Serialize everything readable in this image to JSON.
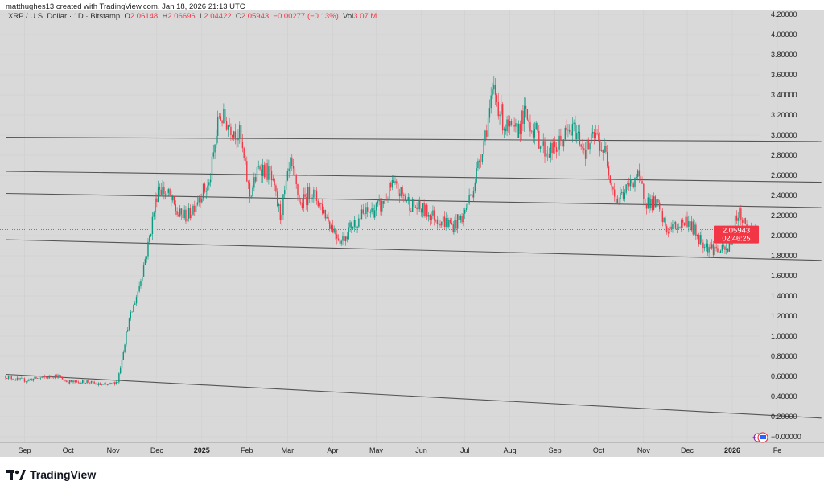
{
  "credit": "matthughes13 created with TradingView.com, Jan 18, 2026 21:13 UTC",
  "legend": {
    "symbol": "XRP / U.S. Dollar · 1D · Bitstamp",
    "o_label": "O",
    "o": "2.06148",
    "h_label": "H",
    "h": "2.06696",
    "l_label": "L",
    "l": "2.04422",
    "c_label": "C",
    "c": "2.05943",
    "change": "−0.00277 (−0.13%)",
    "vol_label": "Vol",
    "vol": "3.07 M"
  },
  "price_badge": {
    "price": "2.05943",
    "countdown": "02:46:25"
  },
  "logo_text": "TradingView",
  "colors": {
    "up": "#089981",
    "down": "#f23645",
    "background": "#d9d9d9",
    "trendline": "#555555"
  },
  "chart_data": {
    "type": "candlestick",
    "start_date": "2024-08-19",
    "end_date": "2026-01-18",
    "weekly_closes": [
      0.6,
      0.57,
      0.56,
      0.58,
      0.59,
      0.61,
      0.55,
      0.54,
      0.55,
      0.52,
      0.51,
      0.55,
      1.1,
      1.45,
      1.9,
      2.5,
      2.4,
      2.2,
      2.2,
      2.4,
      2.5,
      3.2,
      3.1,
      3.0,
      2.4,
      2.7,
      2.6,
      2.2,
      2.7,
      2.3,
      2.45,
      2.3,
      2.1,
      1.95,
      2.1,
      2.2,
      2.25,
      2.3,
      2.5,
      2.4,
      2.3,
      2.25,
      2.2,
      2.15,
      2.1,
      2.2,
      2.5,
      2.95,
      3.45,
      3.1,
      3.0,
      3.2,
      3.05,
      2.85,
      2.85,
      3.0,
      3.05,
      2.85,
      3.0,
      2.8,
      2.35,
      2.45,
      2.6,
      2.35,
      2.3,
      2.05,
      2.1,
      2.15,
      2.0,
      1.9,
      1.85,
      1.85,
      2.25,
      2.06
    ],
    "last_price": 2.05943,
    "ylim": [
      -0.1,
      4.2
    ],
    "y_ticks": [
      "−0.00000",
      "0.20000",
      "0.40000",
      "0.60000",
      "0.80000",
      "1.00000",
      "1.20000",
      "1.40000",
      "1.60000",
      "1.80000",
      "2.00000",
      "2.20000",
      "2.40000",
      "2.60000",
      "2.80000",
      "3.00000",
      "3.20000",
      "3.40000",
      "3.60000",
      "3.80000",
      "4.00000",
      "4.20000"
    ],
    "x_ticks": [
      {
        "label": "Sep",
        "date": "2024-09-01"
      },
      {
        "label": "Oct",
        "date": "2024-10-01"
      },
      {
        "label": "Nov",
        "date": "2024-11-01"
      },
      {
        "label": "Dec",
        "date": "2024-12-01"
      },
      {
        "label": "2025",
        "date": "2025-01-01",
        "bold": true
      },
      {
        "label": "Feb",
        "date": "2025-02-01"
      },
      {
        "label": "Mar",
        "date": "2025-03-01"
      },
      {
        "label": "Apr",
        "date": "2025-04-01"
      },
      {
        "label": "May",
        "date": "2025-05-01"
      },
      {
        "label": "Jun",
        "date": "2025-06-01"
      },
      {
        "label": "Jul",
        "date": "2025-07-01"
      },
      {
        "label": "Aug",
        "date": "2025-08-01"
      },
      {
        "label": "Sep",
        "date": "2025-09-01"
      },
      {
        "label": "Oct",
        "date": "2025-10-01"
      },
      {
        "label": "Nov",
        "date": "2025-11-01"
      },
      {
        "label": "Dec",
        "date": "2025-12-01"
      },
      {
        "label": "2026",
        "date": "2026-01-01",
        "bold": true
      },
      {
        "label": "Fe",
        "date": "2026-02-01"
      }
    ],
    "trendlines": [
      {
        "from": [
          "2024-08-19",
          2.98
        ],
        "to": [
          "2026-01-18",
          2.94
        ]
      },
      {
        "from": [
          "2024-08-19",
          2.64
        ],
        "to": [
          "2026-01-18",
          2.54
        ]
      },
      {
        "from": [
          "2024-08-19",
          2.42
        ],
        "to": [
          "2026-01-18",
          2.29
        ]
      },
      {
        "from": [
          "2024-08-19",
          1.96
        ],
        "to": [
          "2026-01-18",
          1.77
        ]
      },
      {
        "from": [
          "2024-08-19",
          0.62
        ],
        "to": [
          "2026-01-18",
          0.22
        ]
      }
    ]
  }
}
